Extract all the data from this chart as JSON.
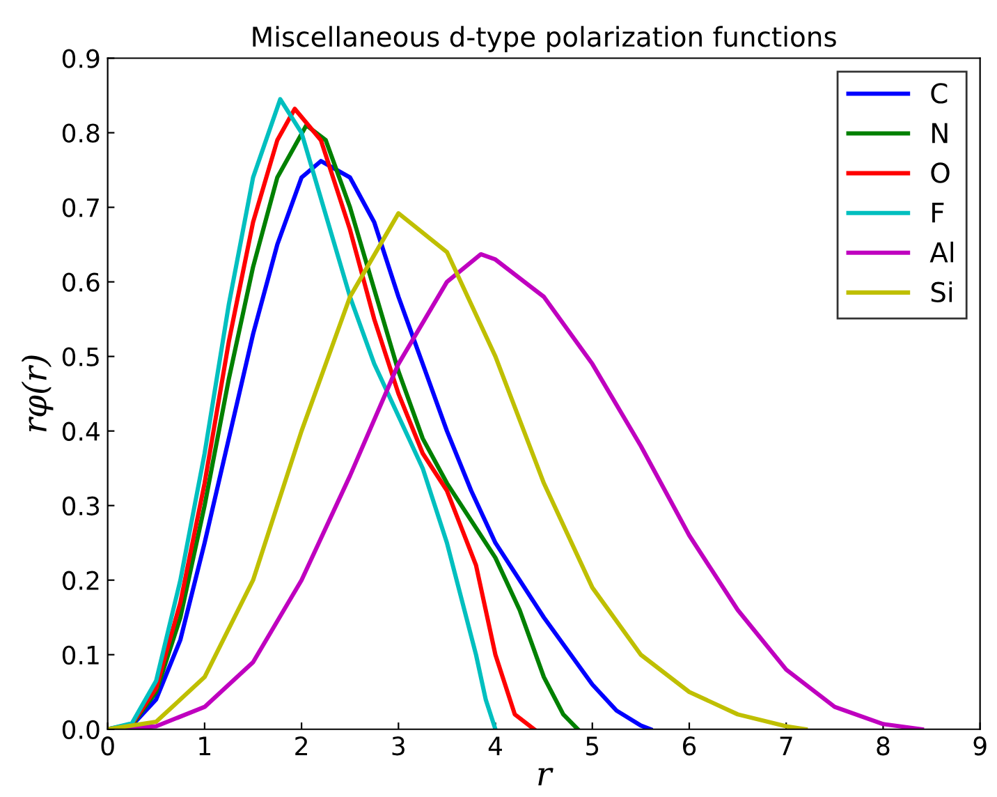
{
  "chart_data": {
    "type": "line",
    "title": "Miscellaneous d-type polarization functions",
    "xlabel": "r",
    "ylabel": "rφ(r)",
    "xlim": [
      0,
      9
    ],
    "ylim": [
      0,
      0.9
    ],
    "xticks": [
      0,
      1,
      2,
      3,
      4,
      5,
      6,
      7,
      8,
      9
    ],
    "yticks": [
      {
        "value": 0,
        "label": "0.0"
      },
      0.1,
      0.2,
      0.3,
      0.4,
      0.5,
      0.6,
      0.7,
      0.8,
      0.9
    ],
    "grid": false,
    "legend": "top right",
    "line_style": "solid",
    "marker": "none",
    "series": [
      {
        "name": "C",
        "color": "#0000ff",
        "x": [
          0,
          0.25,
          0.5,
          0.75,
          1,
          1.25,
          1.5,
          1.75,
          2,
          2.2,
          2.5,
          2.75,
          3,
          3.25,
          3.5,
          3.75,
          4,
          4.5,
          5,
          5.25,
          5.5,
          5.6
        ],
        "values": [
          0,
          0.005,
          0.04,
          0.12,
          0.25,
          0.39,
          0.53,
          0.65,
          0.74,
          0.762,
          0.74,
          0.68,
          0.58,
          0.49,
          0.4,
          0.32,
          0.25,
          0.15,
          0.06,
          0.025,
          0.005,
          0
        ]
      },
      {
        "name": "N",
        "color": "#008000",
        "x": [
          0,
          0.25,
          0.5,
          0.75,
          1,
          1.25,
          1.5,
          1.75,
          2.05,
          2.25,
          2.5,
          2.75,
          3,
          3.25,
          3.5,
          3.75,
          4,
          4.25,
          4.5,
          4.7,
          4.85
        ],
        "values": [
          0,
          0.006,
          0.05,
          0.15,
          0.3,
          0.47,
          0.62,
          0.74,
          0.81,
          0.79,
          0.7,
          0.59,
          0.48,
          0.39,
          0.33,
          0.28,
          0.23,
          0.16,
          0.07,
          0.02,
          0
        ]
      },
      {
        "name": "O",
        "color": "#ff0000",
        "x": [
          0,
          0.25,
          0.5,
          0.75,
          1,
          1.25,
          1.5,
          1.75,
          1.93,
          2.2,
          2.5,
          2.75,
          3,
          3.25,
          3.5,
          3.8,
          4,
          4.2,
          4.4
        ],
        "values": [
          0,
          0.007,
          0.055,
          0.17,
          0.33,
          0.52,
          0.68,
          0.79,
          0.832,
          0.79,
          0.67,
          0.55,
          0.45,
          0.37,
          0.32,
          0.22,
          0.1,
          0.02,
          0
        ]
      },
      {
        "name": "F",
        "color": "#00bfbf",
        "x": [
          0,
          0.25,
          0.5,
          0.75,
          1,
          1.25,
          1.5,
          1.78,
          2,
          2.25,
          2.5,
          2.75,
          3,
          3.25,
          3.5,
          3.8,
          3.9,
          4.0
        ],
        "values": [
          0,
          0.008,
          0.065,
          0.2,
          0.37,
          0.57,
          0.74,
          0.845,
          0.8,
          0.69,
          0.58,
          0.49,
          0.42,
          0.35,
          0.25,
          0.1,
          0.04,
          0
        ]
      },
      {
        "name": "Al",
        "color": "#bf00bf",
        "x": [
          0,
          0.5,
          1,
          1.5,
          2,
          2.5,
          3,
          3.5,
          3.85,
          4,
          4.5,
          5,
          5.5,
          6,
          6.5,
          7,
          7.5,
          8,
          8.4
        ],
        "values": [
          0,
          0.004,
          0.03,
          0.09,
          0.2,
          0.34,
          0.49,
          0.6,
          0.637,
          0.63,
          0.58,
          0.49,
          0.38,
          0.26,
          0.16,
          0.08,
          0.03,
          0.007,
          0
        ]
      },
      {
        "name": "Si",
        "color": "#bfbf00",
        "x": [
          0,
          0.5,
          1,
          1.5,
          2,
          2.5,
          3,
          3.5,
          4,
          4.5,
          5,
          5.5,
          6,
          6.5,
          7,
          7.2
        ],
        "values": [
          0,
          0.01,
          0.07,
          0.2,
          0.4,
          0.58,
          0.692,
          0.64,
          0.5,
          0.33,
          0.19,
          0.1,
          0.05,
          0.02,
          0.004,
          0
        ]
      }
    ]
  }
}
